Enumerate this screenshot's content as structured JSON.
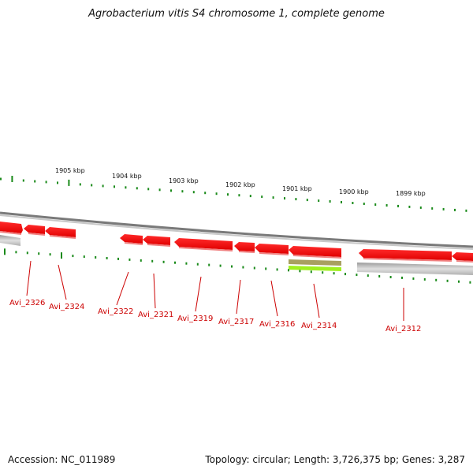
{
  "title": "Agrobacterium vitis S4 chromosome 1, complete genome",
  "scale_labels": [
    "1905 kbp",
    "1904 kbp",
    "1903 kbp",
    "1902 kbp",
    "1901 kbp",
    "1900 kbp",
    "1899 kbp"
  ],
  "gene_labels": [
    "Avi_2326",
    "Avi_2324",
    "Avi_2322",
    "Avi_2321",
    "Avi_2319",
    "Avi_2317",
    "Avi_2316",
    "Avi_2314",
    "Avi_2312"
  ],
  "footer": {
    "accession": "Accession: NC_011989",
    "summary": "Topology: circular; Length: 3,726,375 bp; Genes: 3,287"
  },
  "colors": {
    "gene": "#ff0000",
    "tick": "#1a8a1a",
    "backbone": "#808080",
    "label": "#cc0000",
    "highlight_top": "#a8a060",
    "highlight_bottom": "#a0f020"
  }
}
